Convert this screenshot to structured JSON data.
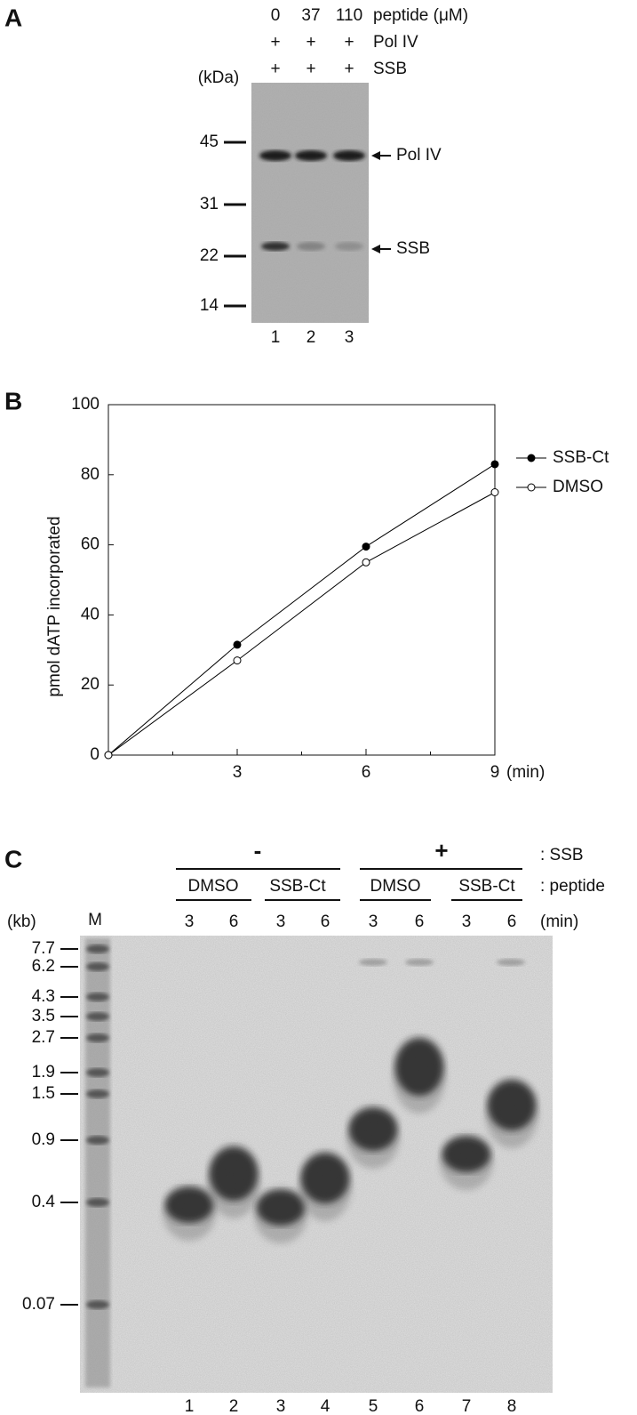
{
  "panel_a": {
    "label": "A",
    "concentrations": [
      "0",
      "37",
      "110"
    ],
    "concentration_label": "peptide (μM)",
    "rows": [
      {
        "signs": [
          "+",
          "+",
          "+"
        ],
        "label": "Pol IV"
      },
      {
        "signs": [
          "+",
          "+",
          "+"
        ],
        "label": "SSB"
      }
    ],
    "unit": "(kDa)",
    "markers": [
      "45",
      "31",
      "22",
      "14"
    ],
    "bands": [
      "Pol IV",
      "SSB"
    ],
    "lanes": [
      "1",
      "2",
      "3"
    ]
  },
  "chart_data": {
    "type": "line",
    "panel_label": "B",
    "ylabel": "pmol dATP incorporated",
    "xlabel": "(min)",
    "x": [
      0,
      3,
      6,
      9
    ],
    "series": [
      {
        "name": "SSB-Ct",
        "color": "#000000",
        "marker": "filled",
        "values": [
          0,
          31.5,
          59.5,
          83
        ]
      },
      {
        "name": "DMSO",
        "color": "#000000",
        "marker": "open",
        "values": [
          0,
          27,
          55,
          75
        ]
      }
    ],
    "xlim": [
      0,
      9
    ],
    "ylim": [
      0,
      100
    ],
    "xticks": [
      3,
      6,
      9
    ],
    "xminorticks": [
      1.5,
      4.5,
      7.5
    ],
    "yticks": [
      0,
      20,
      40,
      60,
      80,
      100
    ],
    "legend": "right"
  },
  "panel_c": {
    "label": "C",
    "ssb_row": {
      "signs": [
        "-",
        "+"
      ],
      "label": ": SSB"
    },
    "peptide_row": {
      "labels": [
        "DMSO",
        "SSB-Ct",
        "DMSO",
        "SSB-Ct"
      ],
      "label": ": peptide"
    },
    "time_row": {
      "unit_left": "(kb)",
      "marker_lane": "M",
      "times": [
        "3",
        "6",
        "3",
        "6",
        "3",
        "6",
        "3",
        "6"
      ],
      "unit": "(min)"
    },
    "markers": [
      "7.7",
      "6.2",
      "4.3",
      "3.5",
      "2.7",
      "1.9",
      "1.5",
      "0.9",
      "0.4",
      "0.07"
    ],
    "lanes": [
      "1",
      "2",
      "3",
      "4",
      "5",
      "6",
      "7",
      "8"
    ]
  }
}
